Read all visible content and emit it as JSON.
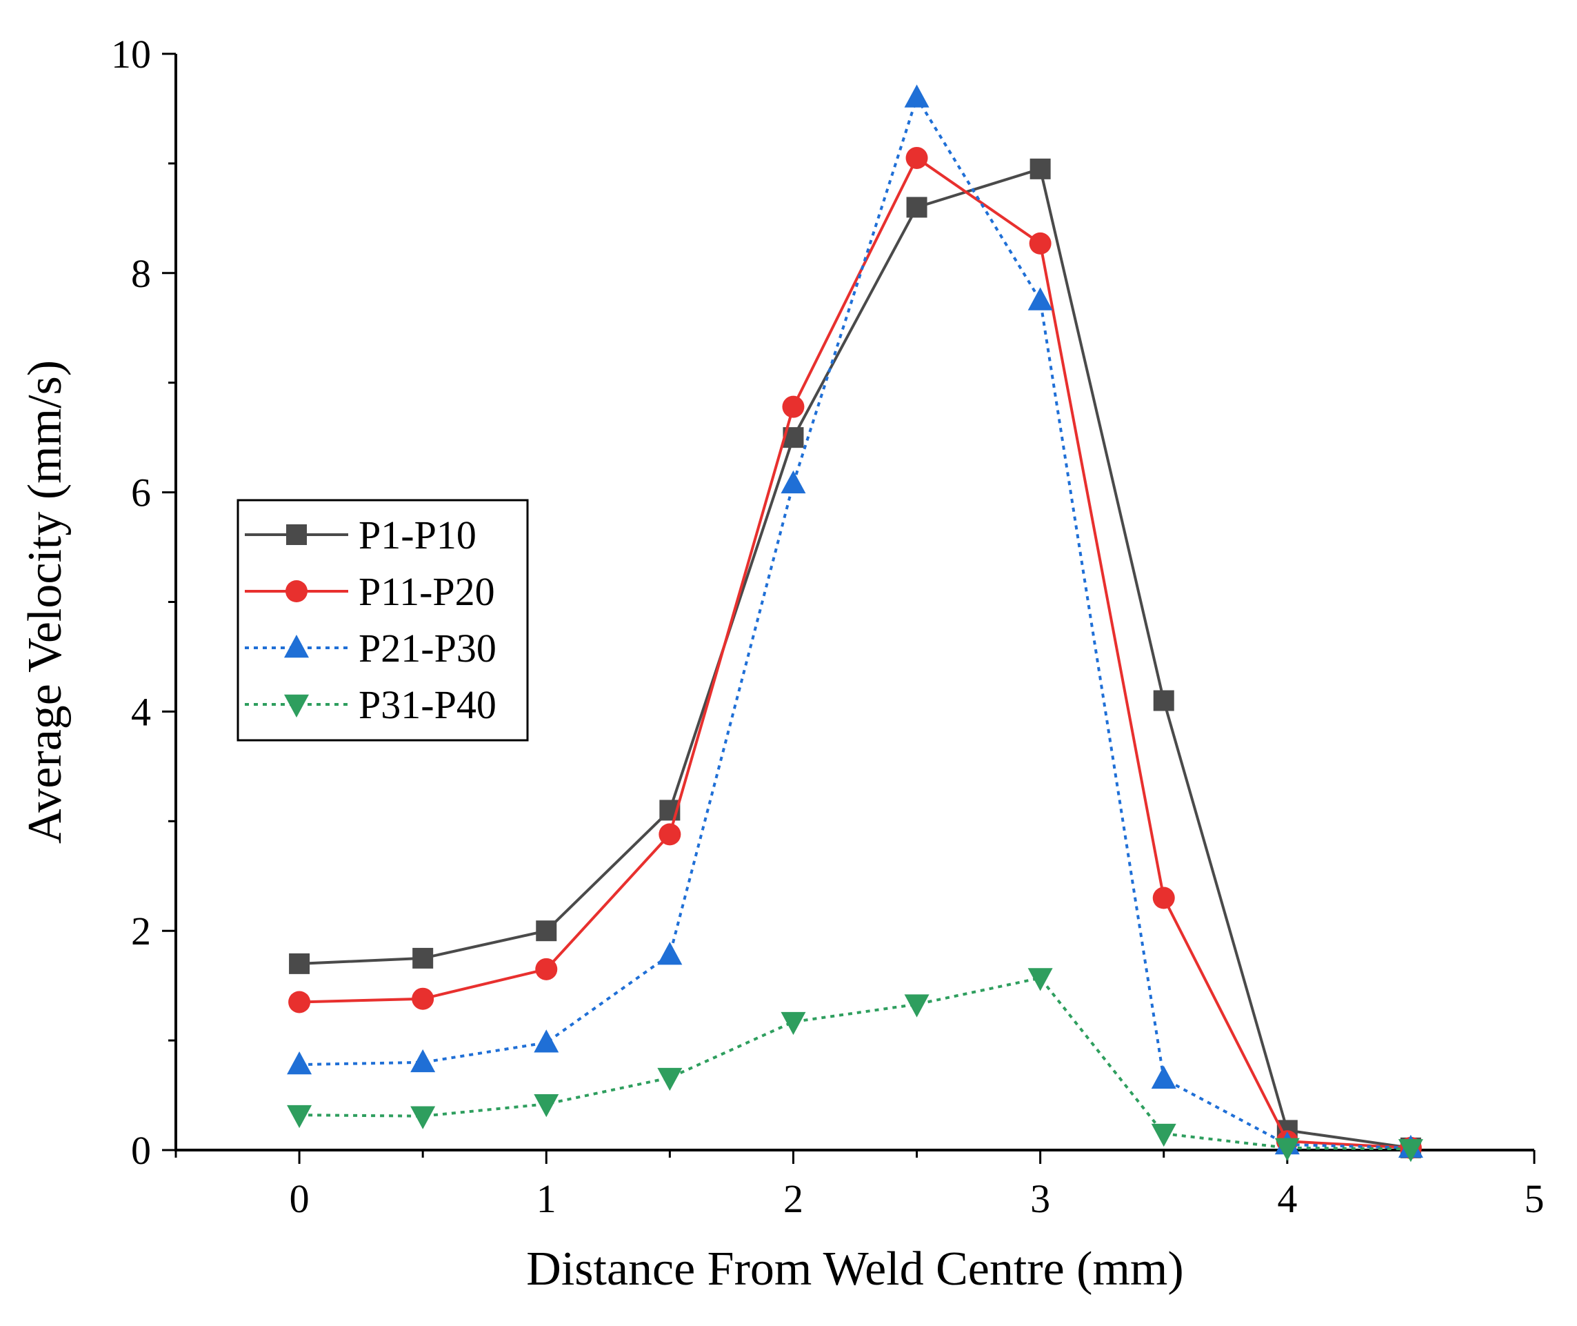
{
  "chart_data": {
    "type": "line",
    "title": "",
    "xlabel": "Distance From Weld Centre (mm)",
    "ylabel": "Average Velocity (mm/s)",
    "xlim": [
      -0.5,
      5
    ],
    "ylim": [
      0,
      10
    ],
    "xticks": [
      0,
      1,
      2,
      3,
      4,
      5
    ],
    "yticks": [
      0,
      2,
      4,
      6,
      8,
      10
    ],
    "xtick_labels": [
      "0",
      "1",
      "2",
      "3",
      "4",
      "5"
    ],
    "ytick_labels": [
      "0",
      "2",
      "4",
      "6",
      "8",
      "10"
    ],
    "grid": false,
    "legend_position": "center-left",
    "x": [
      0,
      0.5,
      1,
      1.5,
      2,
      2.5,
      3,
      3.5,
      4,
      4.5
    ],
    "series": [
      {
        "name": "P1-P10",
        "color": "#4a4a4a",
        "line_style": "solid",
        "marker": "square",
        "values": [
          1.7,
          1.75,
          2.0,
          3.1,
          6.5,
          8.6,
          8.95,
          4.1,
          0.18,
          0.02
        ]
      },
      {
        "name": "P11-P20",
        "color": "#e8302e",
        "line_style": "solid",
        "marker": "circle",
        "values": [
          1.35,
          1.38,
          1.65,
          2.88,
          6.78,
          9.05,
          8.27,
          2.3,
          0.08,
          0.02
        ]
      },
      {
        "name": "P21-P30",
        "color": "#1f6fd6",
        "line_style": "dotted",
        "marker": "triangle-up",
        "values": [
          0.78,
          0.8,
          0.98,
          1.78,
          6.08,
          9.6,
          7.75,
          0.65,
          0.05,
          0.02
        ]
      },
      {
        "name": "P31-P40",
        "color": "#2e9e5e",
        "line_style": "dotted",
        "marker": "triangle-down",
        "values": [
          0.32,
          0.31,
          0.42,
          0.66,
          1.17,
          1.33,
          1.57,
          0.15,
          0.02,
          0.01
        ]
      }
    ]
  }
}
